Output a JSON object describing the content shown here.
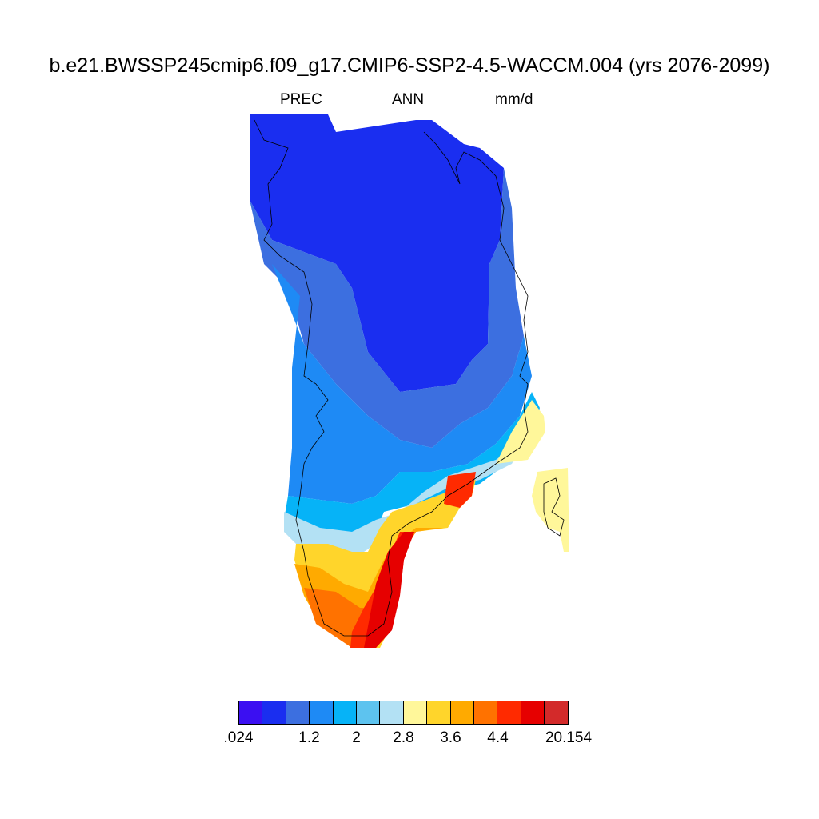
{
  "title": "b.e21.BWSSP245cmip6.f09_g17.CMIP6-SSP2-4.5-WACCM.004 (yrs 2076-2099)",
  "variable": "PREC",
  "season": "ANN",
  "units": "mm/d",
  "colorbar": {
    "colors": [
      "#3b0ff2",
      "#1a2ef0",
      "#3c6fe0",
      "#1e8af5",
      "#06b3f7",
      "#5dc3ef",
      "#b3e1f4",
      "#fff79a",
      "#ffd52b",
      "#ffaa00",
      "#ff7200",
      "#ff2a00",
      "#e60000",
      "#d32a2a"
    ],
    "tick_labels": [
      ".024",
      "1.2",
      "2",
      "2.8",
      "3.6",
      "4.4",
      "20.154"
    ]
  },
  "map_data": {
    "region": "Greenland",
    "levels": [
      ".024",
      "1.2",
      "2",
      "2.8",
      "3.6",
      "4.4",
      "20.154"
    ]
  }
}
